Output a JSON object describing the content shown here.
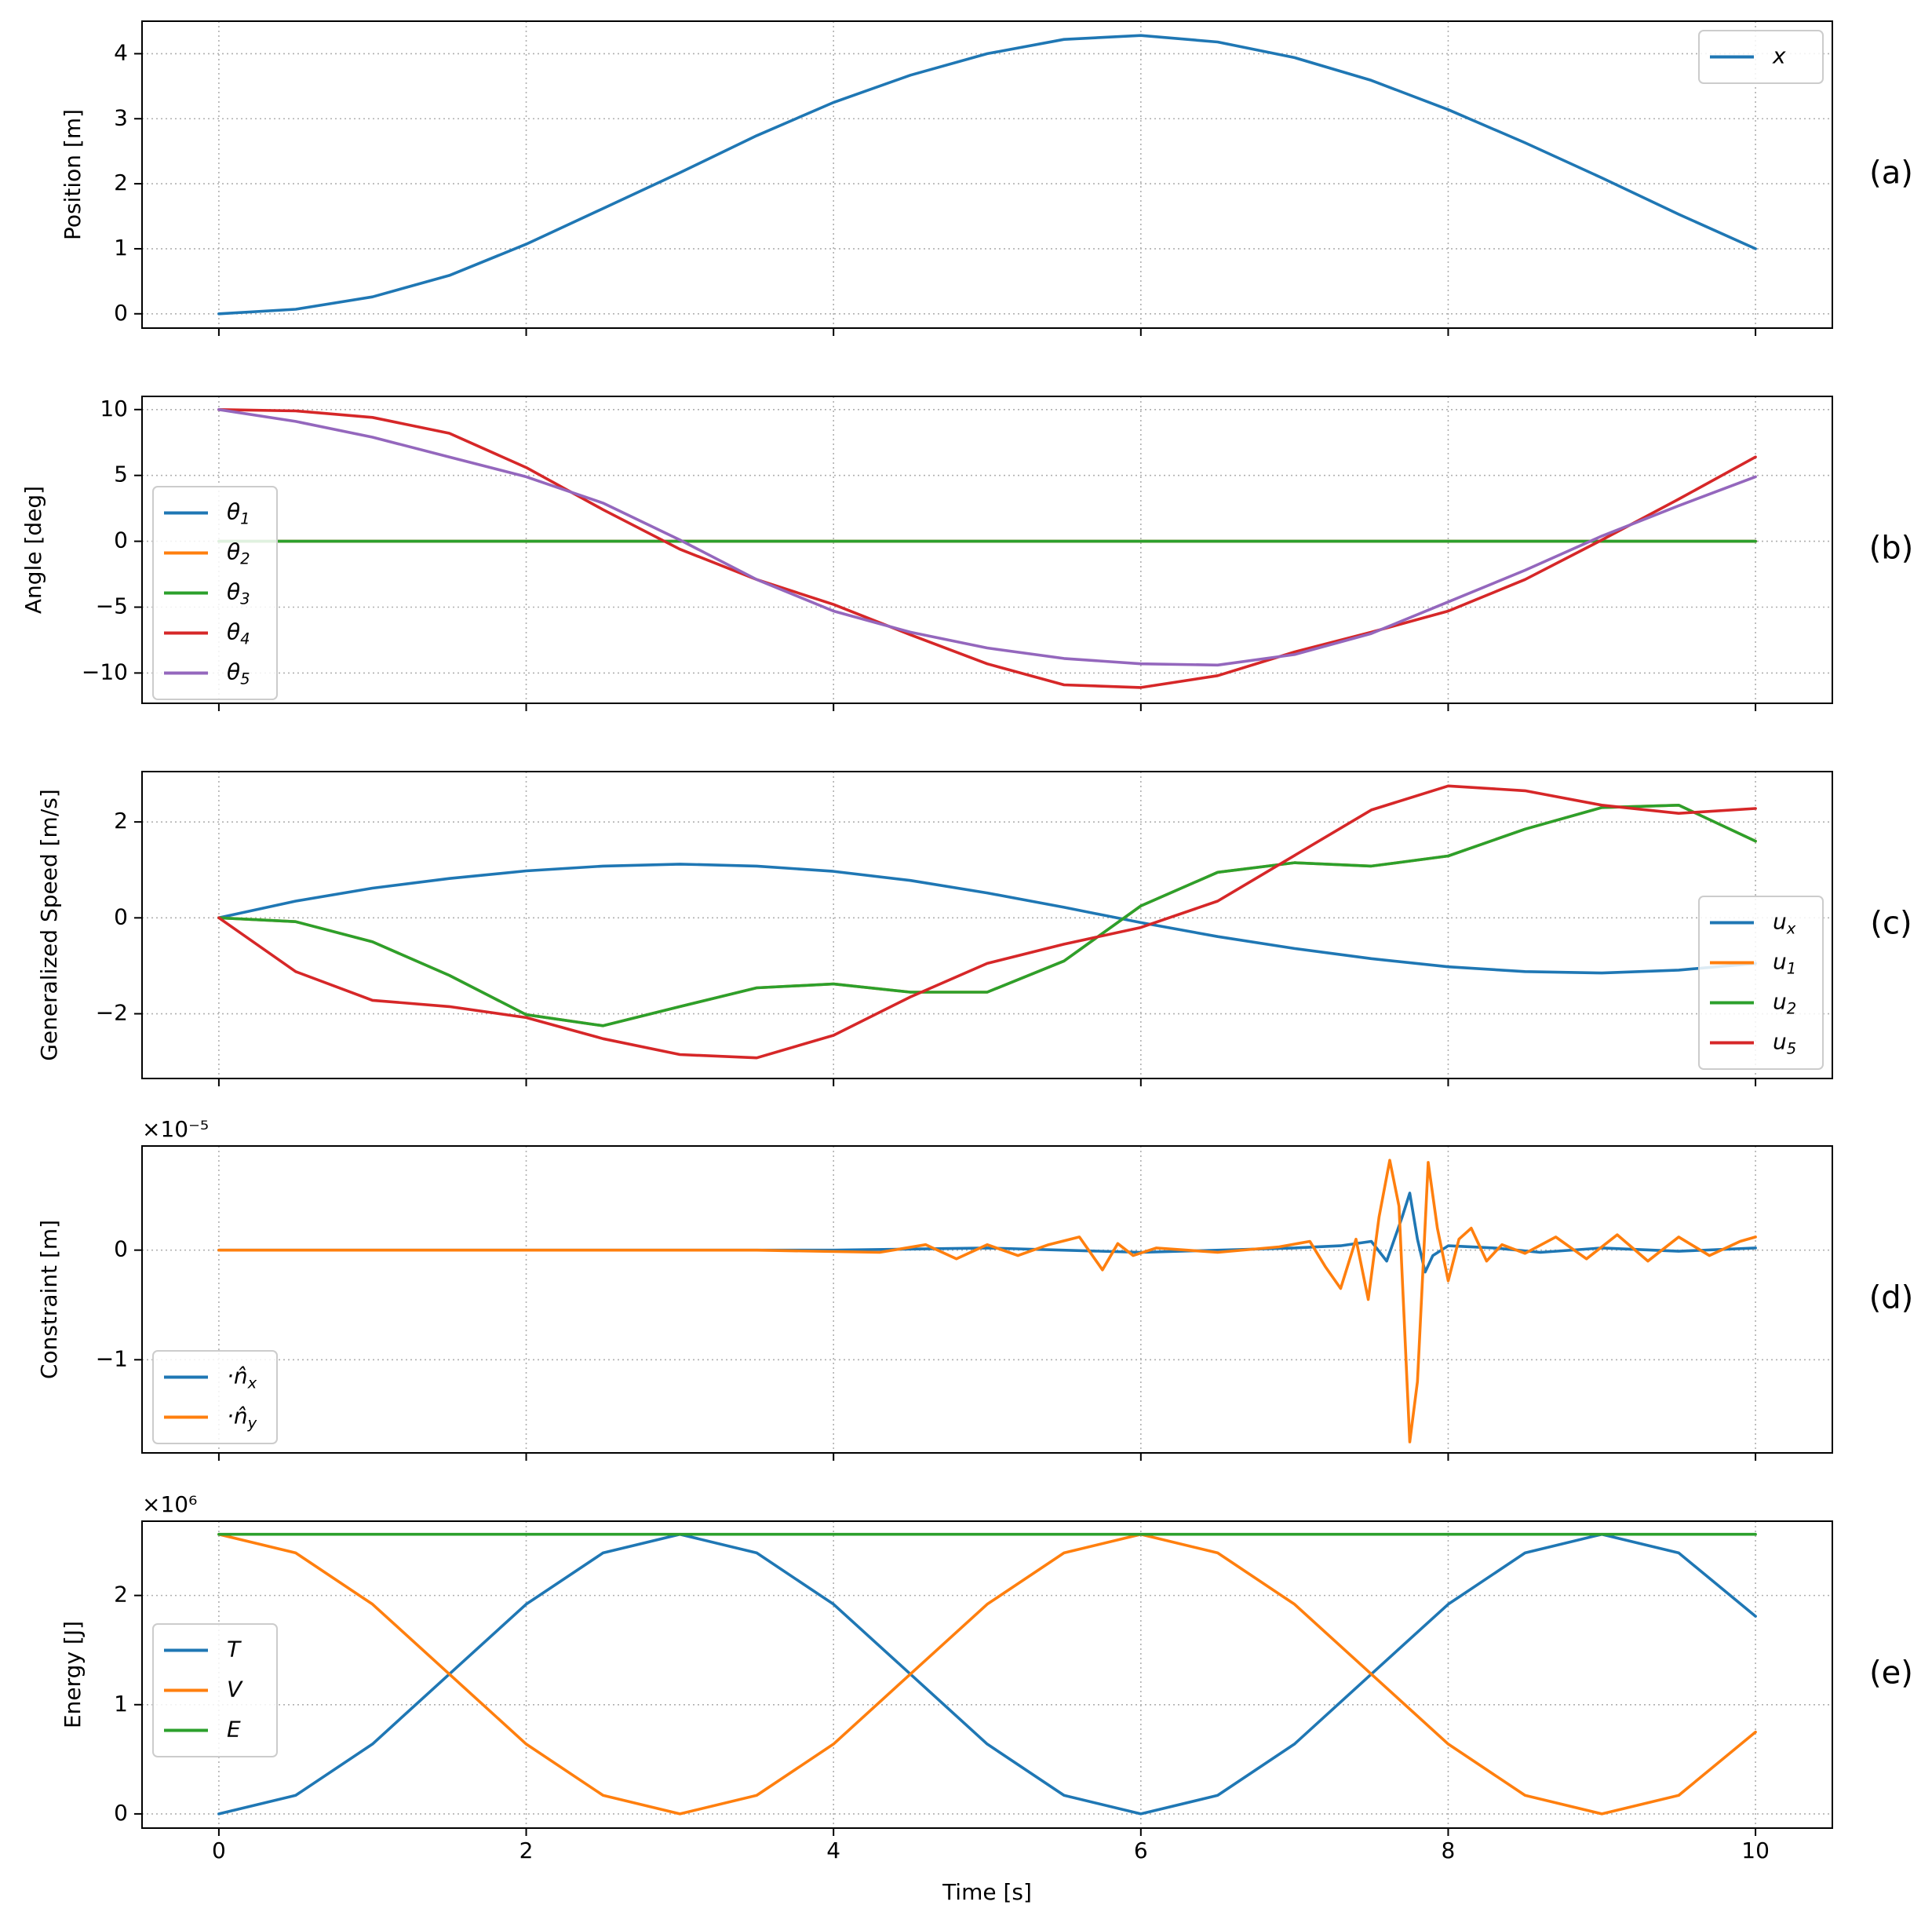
{
  "chart_data": {
    "type": "line",
    "figure": "Multi-panel simulation results (shared time axis)",
    "shared_xlabel": "Time [s]",
    "xlim": [
      -0.5,
      10.5
    ],
    "xticks": [
      0,
      2,
      4,
      6,
      8,
      10
    ],
    "colors": {
      "c0": "#1f77b4",
      "c1": "#ff7f0e",
      "c2": "#2ca02c",
      "c3": "#d62728",
      "c4": "#9467bd"
    },
    "panels": [
      {
        "id": "a",
        "panel_label": "(a)",
        "ylabel": "Position [m]",
        "ylim": [
          -0.22,
          4.5
        ],
        "yticks": [
          0,
          1,
          2,
          3,
          4
        ],
        "ytick_labels": [
          "0",
          "1",
          "2",
          "3",
          "4"
        ],
        "scale_label": null,
        "legend_position": "upper-right",
        "series": [
          {
            "name": "x",
            "math": {
              "base": "x",
              "sub": ""
            },
            "color": "#1f77b4",
            "x": [
              0,
              0.5,
              1,
              1.5,
              2,
              2.5,
              3,
              3.5,
              4,
              4.5,
              5,
              5.5,
              6,
              6.5,
              7,
              7.5,
              8,
              8.5,
              9,
              9.5,
              10
            ],
            "y": [
              0,
              0.07,
              0.26,
              0.59,
              1.07,
              1.62,
              2.17,
              2.74,
              3.25,
              3.67,
              4.0,
              4.22,
              4.28,
              4.18,
              3.94,
              3.59,
              3.14,
              2.63,
              2.09,
              1.53,
              1.0
            ]
          }
        ]
      },
      {
        "id": "b",
        "panel_label": "(b)",
        "ylabel": "Angle [deg]",
        "ylim": [
          -12.3,
          11.0
        ],
        "yticks": [
          -10,
          -5,
          0,
          5,
          10
        ],
        "ytick_labels": [
          "−10",
          "−5",
          "0",
          "5",
          "10"
        ],
        "scale_label": null,
        "legend_position": "middle-left",
        "series": [
          {
            "name": "θ1",
            "math": {
              "base": "θ",
              "sub": "1"
            },
            "color": "#1f77b4",
            "x": [
              0,
              10
            ],
            "y": [
              0,
              0
            ]
          },
          {
            "name": "θ2",
            "math": {
              "base": "θ",
              "sub": "2"
            },
            "color": "#ff7f0e",
            "x": [
              0,
              10
            ],
            "y": [
              0,
              0
            ]
          },
          {
            "name": "θ3",
            "math": {
              "base": "θ",
              "sub": "3"
            },
            "color": "#2ca02c",
            "x": [
              0,
              10
            ],
            "y": [
              0,
              0
            ]
          },
          {
            "name": "θ4",
            "math": {
              "base": "θ",
              "sub": "4"
            },
            "color": "#d62728",
            "x": [
              0,
              0.5,
              1,
              1.5,
              2,
              2.5,
              3,
              3.5,
              4,
              4.5,
              5,
              5.5,
              6,
              6.5,
              7,
              7.5,
              8,
              8.5,
              9,
              9.5,
              10
            ],
            "y": [
              10.0,
              9.9,
              9.4,
              8.2,
              5.6,
              2.4,
              -0.6,
              -2.9,
              -4.8,
              -7.1,
              -9.3,
              -10.9,
              -11.1,
              -10.2,
              -8.4,
              -6.9,
              -5.3,
              -2.9,
              0.1,
              3.2,
              6.4
            ]
          },
          {
            "name": "θ5",
            "math": {
              "base": "θ",
              "sub": "5"
            },
            "color": "#9467bd",
            "x": [
              0,
              0.5,
              1,
              1.5,
              2,
              2.5,
              3,
              3.5,
              4,
              4.5,
              5,
              5.5,
              6,
              6.5,
              7,
              7.5,
              8,
              8.5,
              9,
              9.5,
              10
            ],
            "y": [
              10.0,
              9.1,
              7.9,
              6.4,
              4.9,
              2.9,
              0.1,
              -2.9,
              -5.3,
              -6.9,
              -8.1,
              -8.9,
              -9.3,
              -9.4,
              -8.6,
              -7.0,
              -4.6,
              -2.2,
              0.4,
              2.7,
              4.9
            ]
          }
        ]
      },
      {
        "id": "c",
        "panel_label": "(c)",
        "ylabel": "Generalized Speed [m/s]",
        "ylim": [
          -3.35,
          3.05
        ],
        "yticks": [
          -2,
          0,
          2
        ],
        "ytick_labels": [
          "−2",
          "0",
          "2"
        ],
        "scale_label": null,
        "legend_position": "lower-right",
        "series": [
          {
            "name": "ux",
            "math": {
              "base": "u",
              "sub": "x"
            },
            "color": "#1f77b4",
            "x": [
              0,
              0.5,
              1,
              1.5,
              2,
              2.5,
              3,
              3.5,
              4,
              4.5,
              5,
              5.5,
              6,
              6.5,
              7,
              7.5,
              8,
              8.5,
              9,
              9.5,
              10
            ],
            "y": [
              0,
              0.35,
              0.62,
              0.82,
              0.98,
              1.08,
              1.12,
              1.08,
              0.97,
              0.78,
              0.52,
              0.22,
              -0.1,
              -0.39,
              -0.64,
              -0.85,
              -1.02,
              -1.12,
              -1.15,
              -1.09,
              -0.95
            ]
          },
          {
            "name": "u1",
            "math": {
              "base": "u",
              "sub": "1"
            },
            "color": "#ff7f0e",
            "x": [
              0,
              0.5,
              1,
              1.5,
              2,
              2.5,
              3,
              3.5,
              4,
              4.5,
              5,
              5.5,
              6,
              6.5,
              7,
              7.5,
              8,
              8.5,
              9,
              9.5,
              10
            ],
            "y": [
              0,
              -0.08,
              -0.5,
              -1.2,
              -2.02,
              -2.25,
              -1.85,
              -1.46,
              -1.38,
              -1.55,
              -1.55,
              -0.9,
              0.25,
              0.95,
              1.15,
              1.08,
              1.29,
              1.85,
              2.3,
              2.35,
              1.6
            ]
          },
          {
            "name": "u2",
            "math": {
              "base": "u",
              "sub": "2"
            },
            "color": "#2ca02c",
            "x": [
              0,
              0.5,
              1,
              1.5,
              2,
              2.5,
              3,
              3.5,
              4,
              4.5,
              5,
              5.5,
              6,
              6.5,
              7,
              7.5,
              8,
              8.5,
              9,
              9.5,
              10
            ],
            "y": [
              0,
              -0.08,
              -0.5,
              -1.2,
              -2.02,
              -2.25,
              -1.85,
              -1.46,
              -1.38,
              -1.55,
              -1.55,
              -0.9,
              0.25,
              0.95,
              1.15,
              1.08,
              1.29,
              1.85,
              2.3,
              2.35,
              1.6
            ]
          },
          {
            "name": "u5",
            "math": {
              "base": "u",
              "sub": "5"
            },
            "color": "#d62728",
            "x": [
              0,
              0.5,
              1,
              1.5,
              2,
              2.5,
              3,
              3.5,
              4,
              4.5,
              5,
              5.5,
              6,
              6.5,
              7,
              7.5,
              8,
              8.5,
              9,
              9.5,
              10
            ],
            "y": [
              0,
              -1.12,
              -1.72,
              -1.85,
              -2.08,
              -2.52,
              -2.85,
              -2.92,
              -2.45,
              -1.65,
              -0.95,
              -0.55,
              -0.2,
              0.35,
              1.3,
              2.25,
              2.75,
              2.65,
              2.35,
              2.18,
              2.28
            ]
          }
        ]
      },
      {
        "id": "d",
        "panel_label": "(d)",
        "ylabel": "Constraint [m]",
        "ylim": [
          -1.85,
          0.95
        ],
        "yticks": [
          -1,
          0
        ],
        "ytick_labels": [
          "−1",
          "0"
        ],
        "scale_label": "×10⁻⁵",
        "legend_position": "lower-left",
        "series": [
          {
            "name": "·n̂x",
            "math": {
              "base": "·n̂",
              "sub": "x"
            },
            "color": "#1f77b4",
            "x": [
              0,
              4,
              5,
              6,
              7,
              7.3,
              7.5,
              7.6,
              7.7,
              7.75,
              7.8,
              7.85,
              7.9,
              8.0,
              8.3,
              8.6,
              9,
              9.5,
              10
            ],
            "y": [
              0,
              0,
              0.02,
              -0.02,
              0.02,
              0.04,
              0.08,
              -0.1,
              0.3,
              0.52,
              0.1,
              -0.2,
              -0.05,
              0.04,
              0.02,
              -0.02,
              0.02,
              -0.01,
              0.02
            ]
          },
          {
            "name": "·n̂y",
            "math": {
              "base": "·n̂",
              "sub": "y"
            },
            "color": "#ff7f0e",
            "x": [
              0,
              3.5,
              4.3,
              4.6,
              4.8,
              5.0,
              5.2,
              5.4,
              5.6,
              5.75,
              5.85,
              5.95,
              6.1,
              6.5,
              6.9,
              7.1,
              7.2,
              7.3,
              7.4,
              7.48,
              7.55,
              7.62,
              7.68,
              7.75,
              7.8,
              7.87,
              7.93,
              8.0,
              8.07,
              8.15,
              8.25,
              8.35,
              8.5,
              8.7,
              8.9,
              9.1,
              9.3,
              9.5,
              9.7,
              9.9,
              10
            ],
            "y": [
              0,
              0,
              -0.02,
              0.05,
              -0.08,
              0.05,
              -0.05,
              0.05,
              0.12,
              -0.18,
              0.06,
              -0.05,
              0.02,
              -0.02,
              0.03,
              0.08,
              -0.15,
              -0.35,
              0.1,
              -0.45,
              0.3,
              0.82,
              0.4,
              -1.75,
              -1.2,
              0.8,
              0.2,
              -0.28,
              0.1,
              0.2,
              -0.1,
              0.05,
              -0.03,
              0.12,
              -0.08,
              0.14,
              -0.1,
              0.12,
              -0.05,
              0.08,
              0.12
            ]
          }
        ]
      },
      {
        "id": "e",
        "panel_label": "(e)",
        "ylabel": "Energy [J]",
        "ylim": [
          -0.13,
          2.68
        ],
        "yticks": [
          0,
          1,
          2
        ],
        "ytick_labels": [
          "0",
          "1",
          "2"
        ],
        "scale_label": "×10⁶",
        "legend_position": "middle-left",
        "series": [
          {
            "name": "T",
            "math": {
              "base": "T",
              "sub": ""
            },
            "color": "#1f77b4",
            "x": [
              0,
              0.5,
              1,
              1.5,
              2,
              2.5,
              3,
              3.5,
              4,
              4.5,
              5,
              5.5,
              6,
              6.5,
              7,
              7.5,
              8,
              8.5,
              9,
              9.5,
              10
            ],
            "y": [
              0.0,
              0.17,
              0.64,
              1.28,
              1.92,
              2.39,
              2.56,
              2.39,
              1.92,
              1.28,
              0.64,
              0.17,
              0.0,
              0.17,
              0.64,
              1.28,
              1.92,
              2.39,
              2.56,
              2.39,
              1.81
            ]
          },
          {
            "name": "V",
            "math": {
              "base": "V",
              "sub": ""
            },
            "color": "#ff7f0e",
            "x": [
              0,
              0.5,
              1,
              1.5,
              2,
              2.5,
              3,
              3.5,
              4,
              4.5,
              5,
              5.5,
              6,
              6.5,
              7,
              7.5,
              8,
              8.5,
              9,
              9.5,
              10
            ],
            "y": [
              2.56,
              2.39,
              1.92,
              1.28,
              0.64,
              0.17,
              0.0,
              0.17,
              0.64,
              1.28,
              1.92,
              2.39,
              2.56,
              2.39,
              1.92,
              1.28,
              0.64,
              0.17,
              0.0,
              0.17,
              0.75
            ]
          },
          {
            "name": "E",
            "math": {
              "base": "E",
              "sub": ""
            },
            "color": "#2ca02c",
            "x": [
              0,
              10
            ],
            "y": [
              2.56,
              2.56
            ]
          }
        ]
      }
    ]
  }
}
